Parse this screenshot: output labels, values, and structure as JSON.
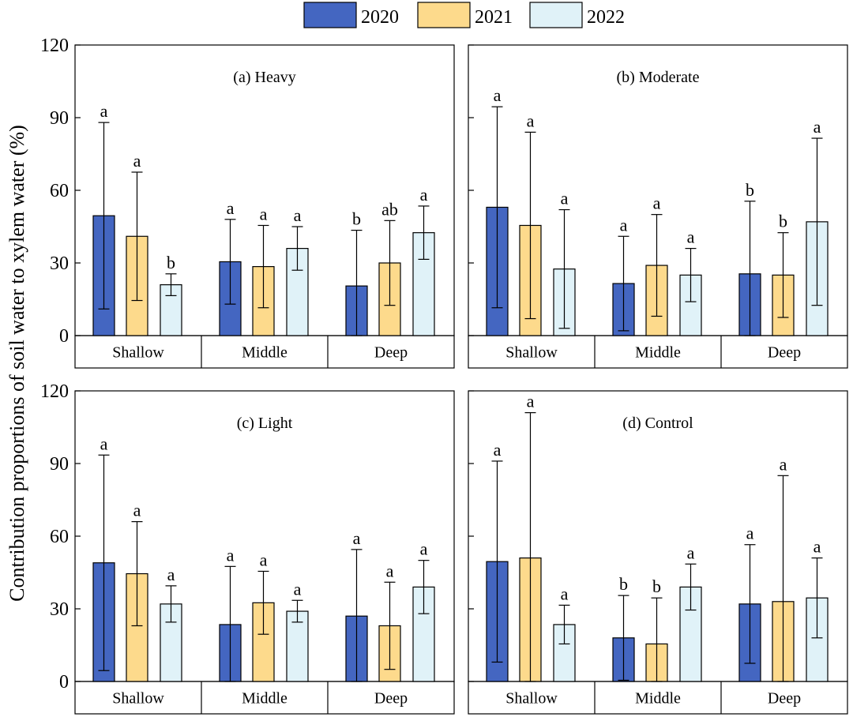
{
  "chart_data": {
    "type": "bar",
    "ylabel": "Contribution proportions of soil water to xylem water (%)",
    "ylim": [
      0,
      120
    ],
    "yticks": [
      "0",
      "30",
      "60",
      "90",
      "120"
    ],
    "categories": [
      "Shallow",
      "Middle",
      "Deep"
    ],
    "legend": [
      {
        "name": "2020",
        "color": "#4466C1"
      },
      {
        "name": "2021",
        "color": "#FDDA8C"
      },
      {
        "name": "2022",
        "color": "#E0F2F8"
      }
    ],
    "panels": [
      {
        "title": "(a) Heavy",
        "series": [
          {
            "name": "2020",
            "values": [
              49.5,
              30.5,
              20.5
            ],
            "err": [
              38.5,
              17.5,
              23
            ],
            "sig": [
              "a",
              "a",
              "b"
            ]
          },
          {
            "name": "2021",
            "values": [
              41,
              28.5,
              30
            ],
            "err": [
              26.5,
              17,
              17.5
            ],
            "sig": [
              "a",
              "a",
              "ab"
            ]
          },
          {
            "name": "2022",
            "values": [
              21,
              36,
              42.5
            ],
            "err": [
              4.5,
              9,
              11
            ],
            "sig": [
              "b",
              "a",
              "a"
            ]
          }
        ]
      },
      {
        "title": "(b) Moderate",
        "series": [
          {
            "name": "2020",
            "values": [
              53,
              21.5,
              25.5
            ],
            "err": [
              41.5,
              19.5,
              30
            ],
            "sig": [
              "a",
              "a",
              "b"
            ]
          },
          {
            "name": "2021",
            "values": [
              45.5,
              29,
              25
            ],
            "err": [
              38.5,
              21,
              17.5
            ],
            "sig": [
              "a",
              "a",
              "b"
            ]
          },
          {
            "name": "2022",
            "values": [
              27.5,
              25,
              47
            ],
            "err": [
              24.5,
              11,
              34.5
            ],
            "sig": [
              "a",
              "a",
              "a"
            ]
          }
        ]
      },
      {
        "title": "(c) Light",
        "series": [
          {
            "name": "2020",
            "values": [
              49,
              23.5,
              27
            ],
            "err": [
              44.5,
              24,
              27.5
            ],
            "sig": [
              "a",
              "a",
              "a"
            ]
          },
          {
            "name": "2021",
            "values": [
              44.5,
              32.5,
              23
            ],
            "err": [
              21.5,
              13,
              18
            ],
            "sig": [
              "a",
              "a",
              "a"
            ]
          },
          {
            "name": "2022",
            "values": [
              32,
              29,
              39
            ],
            "err": [
              7.5,
              4.5,
              11
            ],
            "sig": [
              "a",
              "a",
              "a"
            ]
          }
        ]
      },
      {
        "title": "(d) Control",
        "series": [
          {
            "name": "2020",
            "values": [
              49.5,
              18,
              32
            ],
            "err": [
              41.5,
              17.5,
              24.5
            ],
            "sig": [
              "a",
              "b",
              "a"
            ]
          },
          {
            "name": "2021",
            "values": [
              51,
              15.5,
              33
            ],
            "err": [
              60,
              19,
              52
            ],
            "sig": [
              "a",
              "b",
              "a"
            ]
          },
          {
            "name": "2022",
            "values": [
              23.5,
              39,
              34.5
            ],
            "err": [
              8,
              9.5,
              16.5
            ],
            "sig": [
              "a",
              "a",
              "a"
            ]
          }
        ]
      }
    ]
  }
}
